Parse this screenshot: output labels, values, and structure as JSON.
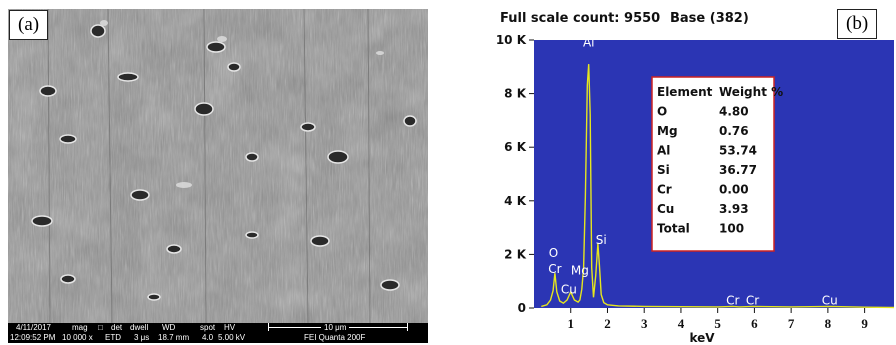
{
  "panel_a": {
    "label": "(a)",
    "info_bar": {
      "headers": [
        "4/11/2017",
        "mag",
        "det",
        "dwell",
        "WD",
        "spot",
        "HV"
      ],
      "values": [
        "12:09:52 PM",
        "10 000 x",
        "ETD",
        "3 μs",
        "18.7 mm",
        "4.0",
        "5.00 kV"
      ],
      "scale_bar_label": "10 μm",
      "instrument": "FEI Quanta 200F"
    }
  },
  "panel_b": {
    "label": "(b)",
    "full_scale_count": "Full scale count: 9550",
    "base": "Base (382)",
    "colors": {
      "plot_bg": "#2b35b4",
      "spectrum": "#e6e61e",
      "table_border": "#cc2222"
    },
    "table": {
      "headers": [
        "Element",
        "Weight %"
      ],
      "rows": [
        [
          "O",
          "4.80"
        ],
        [
          "Mg",
          "0.76"
        ],
        [
          "Al",
          "53.74"
        ],
        [
          "Si",
          "36.77"
        ],
        [
          "Cr",
          "0.00"
        ],
        [
          "Cu",
          "3.93"
        ],
        [
          "Total",
          "100"
        ]
      ]
    }
  },
  "chart_data": {
    "type": "line",
    "title": "",
    "xlabel": "keV",
    "ylabel": "",
    "xlim": [
      0,
      9.8
    ],
    "ylim": [
      0,
      10000
    ],
    "x_ticks": [
      1,
      2,
      3,
      4,
      5,
      6,
      7,
      8,
      9
    ],
    "x_tick_labels": [
      "1",
      "2",
      "3",
      "4",
      "5",
      "6",
      "7",
      "8",
      "9"
    ],
    "y_ticks": [
      0,
      2000,
      4000,
      6000,
      8000,
      10000
    ],
    "y_tick_labels": [
      "0",
      "2 K",
      "4 K",
      "6 K",
      "8 K",
      "10 K"
    ],
    "series": [
      {
        "x": [
          0.2,
          0.35,
          0.45,
          0.52,
          0.57,
          0.62,
          0.7,
          0.8,
          0.9,
          1.0,
          1.1,
          1.2,
          1.25,
          1.3,
          1.35,
          1.4,
          1.45,
          1.49,
          1.53,
          1.57,
          1.62,
          1.68,
          1.74,
          1.78,
          1.83,
          1.9,
          2.0,
          2.3,
          3.0,
          4.0,
          5.0,
          5.41,
          5.6,
          5.95,
          7.0,
          8.05,
          9.0,
          9.8
        ],
        "y": [
          60,
          120,
          300,
          650,
          1300,
          600,
          260,
          180,
          300,
          600,
          300,
          220,
          300,
          700,
          1500,
          4200,
          8300,
          9100,
          7200,
          1500,
          400,
          1200,
          2400,
          1600,
          500,
          200,
          120,
          80,
          60,
          50,
          40,
          60,
          40,
          60,
          40,
          60,
          30,
          20
        ]
      }
    ],
    "peak_labels": [
      {
        "text": "O",
        "x": 0.53,
        "y": 1900
      },
      {
        "text": "Cr",
        "x": 0.57,
        "y": 1300
      },
      {
        "text": "Cu",
        "x": 0.95,
        "y": 540
      },
      {
        "text": "Mg",
        "x": 1.25,
        "y": 1250
      },
      {
        "text": "Al",
        "x": 1.49,
        "y": 9750
      },
      {
        "text": "Si",
        "x": 1.83,
        "y": 2380
      },
      {
        "text": "Cr",
        "x": 5.41,
        "y": 130
      },
      {
        "text": "Cr",
        "x": 5.95,
        "y": 130
      },
      {
        "text": "Cu",
        "x": 8.05,
        "y": 130
      }
    ],
    "legend": "none",
    "grid": false
  }
}
